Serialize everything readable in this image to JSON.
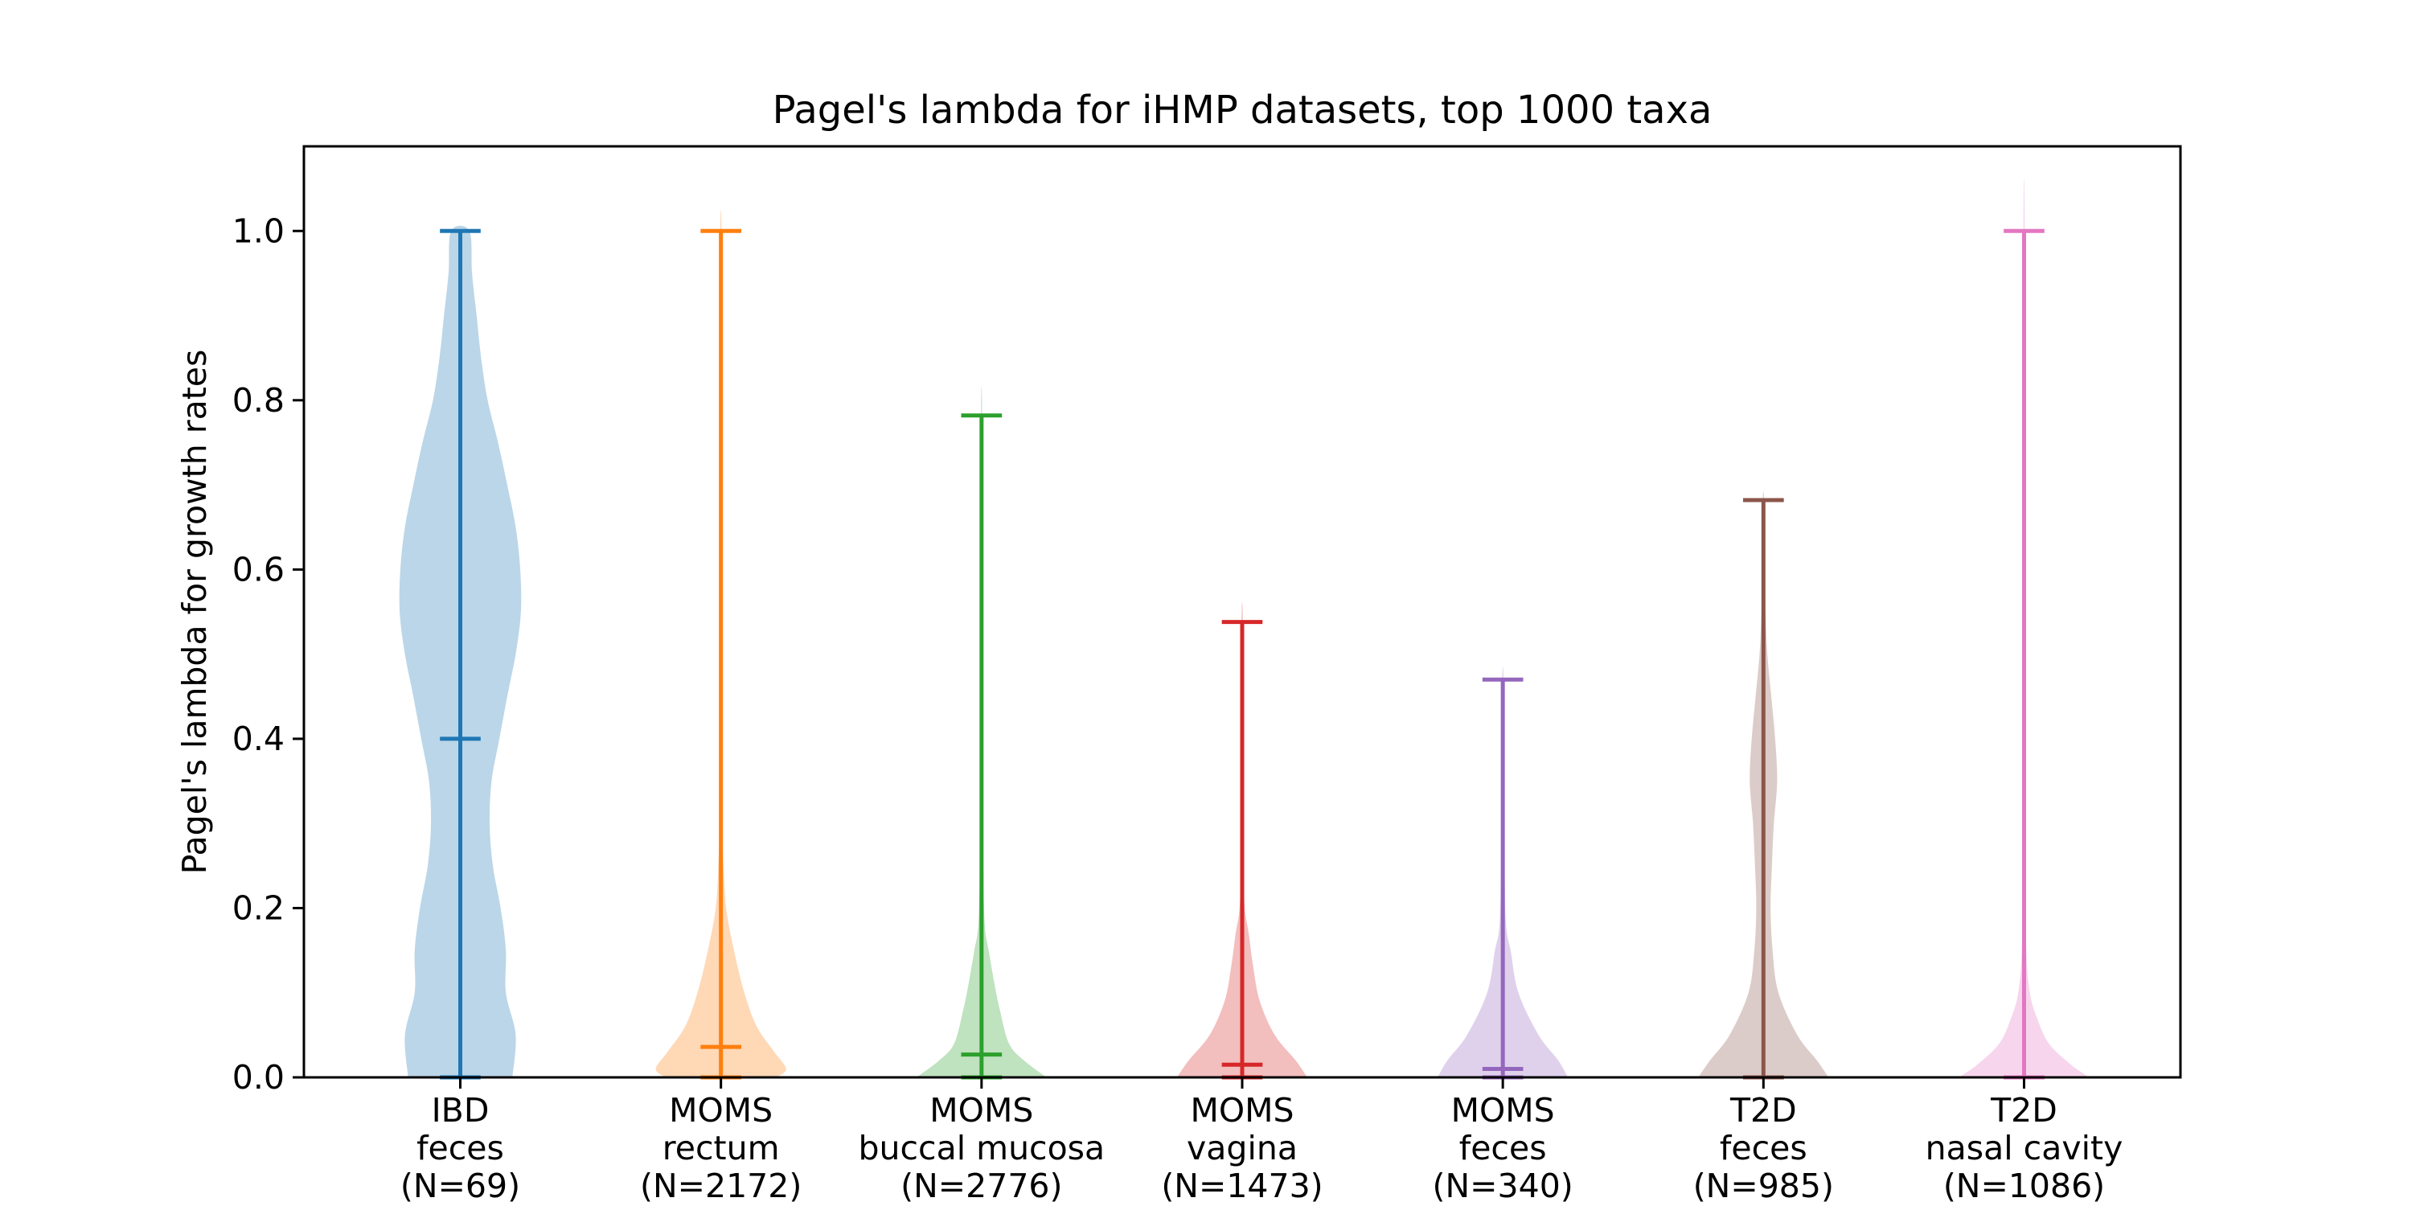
{
  "chart_data": {
    "type": "violin",
    "title": "Pagel's lambda for iHMP datasets, top 1000 taxa",
    "xlabel": "",
    "ylabel": "Pagel's lambda for growth rates",
    "ylim": [
      0,
      1.1
    ],
    "yticks": [
      "0.0",
      "0.2",
      "0.4",
      "0.6",
      "0.8",
      "1.0"
    ],
    "grid": false,
    "series": [
      {
        "label_lines": [
          "IBD",
          "feces",
          "(N=69)"
        ],
        "color": "#1f77b4",
        "min": 0.0,
        "max": 1.0,
        "median": 0.4,
        "density": [
          [
            0.0,
            0.8
          ],
          [
            0.05,
            0.85
          ],
          [
            0.1,
            0.7
          ],
          [
            0.15,
            0.7
          ],
          [
            0.2,
            0.62
          ],
          [
            0.25,
            0.5
          ],
          [
            0.3,
            0.45
          ],
          [
            0.35,
            0.48
          ],
          [
            0.4,
            0.6
          ],
          [
            0.45,
            0.72
          ],
          [
            0.5,
            0.85
          ],
          [
            0.55,
            0.93
          ],
          [
            0.6,
            0.92
          ],
          [
            0.65,
            0.85
          ],
          [
            0.7,
            0.72
          ],
          [
            0.75,
            0.58
          ],
          [
            0.8,
            0.42
          ],
          [
            0.85,
            0.32
          ],
          [
            0.9,
            0.25
          ],
          [
            0.95,
            0.18
          ],
          [
            1.0,
            0.14
          ]
        ]
      },
      {
        "label_lines": [
          "MOMS",
          "rectum",
          "(N=2172)"
        ],
        "color": "#ff7f0e",
        "min": 0.0,
        "max": 1.0,
        "median": 0.036,
        "density": [
          [
            0.0,
            0.85
          ],
          [
            0.01,
            1.0
          ],
          [
            0.03,
            0.82
          ],
          [
            0.06,
            0.55
          ],
          [
            0.1,
            0.36
          ],
          [
            0.15,
            0.2
          ],
          [
            0.2,
            0.08
          ],
          [
            0.25,
            0.04
          ],
          [
            0.3,
            0.02
          ],
          [
            0.4,
            0.012
          ],
          [
            0.6,
            0.01
          ],
          [
            0.8,
            0.01
          ],
          [
            1.0,
            0.01
          ]
        ]
      },
      {
        "label_lines": [
          "MOMS",
          "buccal mucosa",
          "(N=2776)"
        ],
        "color": "#2ca02c",
        "min": 0.0,
        "max": 0.782,
        "median": 0.027,
        "density": [
          [
            0.0,
            1.0
          ],
          [
            0.02,
            0.65
          ],
          [
            0.04,
            0.42
          ],
          [
            0.08,
            0.28
          ],
          [
            0.11,
            0.2
          ],
          [
            0.15,
            0.11
          ],
          [
            0.18,
            0.05
          ],
          [
            0.25,
            0.025
          ],
          [
            0.35,
            0.015
          ],
          [
            0.5,
            0.01
          ],
          [
            0.782,
            0.008
          ]
        ]
      },
      {
        "label_lines": [
          "MOMS",
          "vagina",
          "(N=1473)"
        ],
        "color": "#d62728",
        "min": 0.0,
        "max": 0.538,
        "median": 0.015,
        "density": [
          [
            0.0,
            1.0
          ],
          [
            0.02,
            0.82
          ],
          [
            0.05,
            0.5
          ],
          [
            0.09,
            0.27
          ],
          [
            0.13,
            0.17
          ],
          [
            0.17,
            0.1
          ],
          [
            0.2,
            0.04
          ],
          [
            0.25,
            0.02
          ],
          [
            0.35,
            0.012
          ],
          [
            0.538,
            0.01
          ]
        ]
      },
      {
        "label_lines": [
          "MOMS",
          "feces",
          "(N=340)"
        ],
        "color": "#9467bd",
        "min": 0.0,
        "max": 0.47,
        "median": 0.01,
        "density": [
          [
            0.0,
            1.0
          ],
          [
            0.02,
            0.85
          ],
          [
            0.05,
            0.55
          ],
          [
            0.1,
            0.24
          ],
          [
            0.15,
            0.12
          ],
          [
            0.18,
            0.05
          ],
          [
            0.25,
            0.025
          ],
          [
            0.35,
            0.012
          ],
          [
            0.47,
            0.01
          ]
        ]
      },
      {
        "label_lines": [
          "T2D",
          "feces",
          "(N=985)"
        ],
        "color": "#8c564b",
        "min": 0.0,
        "max": 0.682,
        "median": 0.0,
        "density": [
          [
            0.0,
            1.0
          ],
          [
            0.02,
            0.82
          ],
          [
            0.05,
            0.52
          ],
          [
            0.1,
            0.23
          ],
          [
            0.15,
            0.14
          ],
          [
            0.2,
            0.11
          ],
          [
            0.25,
            0.13
          ],
          [
            0.3,
            0.16
          ],
          [
            0.35,
            0.21
          ],
          [
            0.4,
            0.18
          ],
          [
            0.45,
            0.12
          ],
          [
            0.5,
            0.06
          ],
          [
            0.55,
            0.03
          ],
          [
            0.6,
            0.015
          ],
          [
            0.682,
            0.01
          ]
        ]
      },
      {
        "label_lines": [
          "T2D",
          "nasal cavity",
          "(N=1086)"
        ],
        "color": "#e377c2",
        "min": 0.0,
        "max": 1.0,
        "median": 0.0,
        "density": [
          [
            0.0,
            1.0
          ],
          [
            0.015,
            0.72
          ],
          [
            0.04,
            0.38
          ],
          [
            0.07,
            0.2
          ],
          [
            0.1,
            0.09
          ],
          [
            0.15,
            0.035
          ],
          [
            0.25,
            0.02
          ],
          [
            0.5,
            0.012
          ],
          [
            1.0,
            0.01
          ]
        ]
      }
    ]
  }
}
